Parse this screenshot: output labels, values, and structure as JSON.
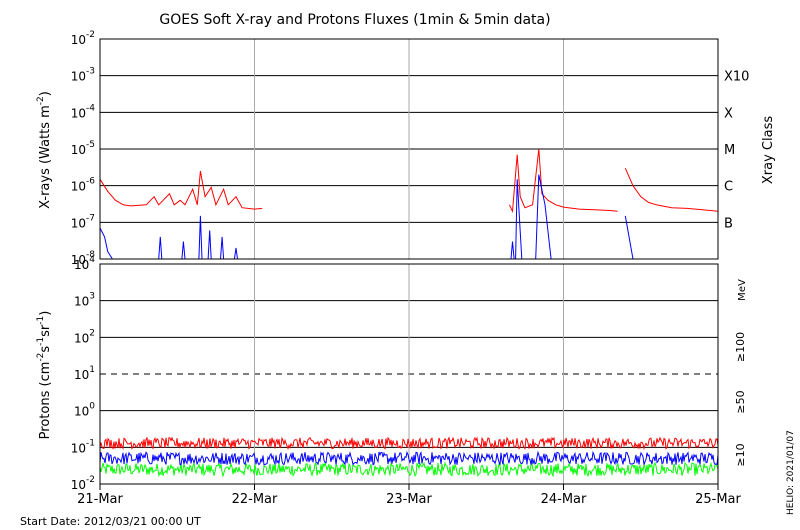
{
  "title": "GOES Soft X-ray and Protons Fluxes   (1min & 5min data)",
  "start_date": "Start Date: 2012/03/21 00:00 UT",
  "credit": "HELIO: 2021/01/07",
  "colors": {
    "xray_long": "#ff0000",
    "xray_short": "#0000ff",
    "p10": "#ff0000",
    "p50": "#0000ff",
    "p100": "#00ff00",
    "grid": "#000000",
    "day_line": "#aaaaaa"
  },
  "chart_data": [
    {
      "type": "line",
      "panel": "xray",
      "title": "GOES Soft X-ray and Protons Fluxes   (1min & 5min data)",
      "ylabel": "X-rays (Watts m-2)",
      "ylabel_main": "X-rays (Watts m",
      "ylabel_sup": "-2",
      "ylabel_close": ")",
      "yscale": "log",
      "ylim": [
        1e-08,
        0.01
      ],
      "yticks": [
        {
          "base": "10",
          "exp": "-8",
          "value": 1e-08
        },
        {
          "base": "10",
          "exp": "-7",
          "value": 1e-07
        },
        {
          "base": "10",
          "exp": "-6",
          "value": 1e-06
        },
        {
          "base": "10",
          "exp": "-5",
          "value": 1e-05
        },
        {
          "base": "10",
          "exp": "-4",
          "value": 0.0001
        },
        {
          "base": "10",
          "exp": "-3",
          "value": 0.001
        },
        {
          "base": "10",
          "exp": "-2",
          "value": 0.01
        }
      ],
      "right_axis_label": "Xray Class",
      "right_ticks": [
        {
          "label": "B",
          "value": 1e-07
        },
        {
          "label": "C",
          "value": 1e-06
        },
        {
          "label": "M",
          "value": 1e-05
        },
        {
          "label": "X",
          "value": 0.0001
        },
        {
          "label": "X10",
          "value": 0.001
        }
      ],
      "xlim": [
        "2012-03-21",
        "2012-03-25"
      ],
      "series": [
        {
          "key": "long",
          "color": "#ff0000",
          "points": [
            [
              0.0,
              1.5e-06
            ],
            [
              0.05,
              7e-07
            ],
            [
              0.1,
              4e-07
            ],
            [
              0.15,
              3e-07
            ],
            [
              0.2,
              2.8e-07
            ],
            [
              0.3,
              3e-07
            ],
            [
              0.35,
              5e-07
            ],
            [
              0.38,
              3e-07
            ],
            [
              0.45,
              6e-07
            ],
            [
              0.48,
              3e-07
            ],
            [
              0.52,
              4e-07
            ],
            [
              0.55,
              3e-07
            ],
            [
              0.6,
              8e-07
            ],
            [
              0.63,
              3e-07
            ],
            [
              0.65,
              2.5e-06
            ],
            [
              0.68,
              5e-07
            ],
            [
              0.72,
              9e-07
            ],
            [
              0.75,
              3e-07
            ],
            [
              0.8,
              8e-07
            ],
            [
              0.83,
              3e-07
            ],
            [
              0.88,
              5e-07
            ],
            [
              0.92,
              2.5e-07
            ],
            [
              1.0,
              2.3e-07
            ],
            [
              1.05,
              2.4e-07
            ],
            [
              null,
              null
            ],
            [
              2.65,
              3e-07
            ],
            [
              2.67,
              2e-07
            ],
            [
              2.7,
              7e-06
            ],
            [
              2.72,
              5e-07
            ],
            [
              2.75,
              2.5e-07
            ],
            [
              2.8,
              3e-07
            ],
            [
              2.84,
              1e-05
            ],
            [
              2.86,
              6e-07
            ],
            [
              2.9,
              4e-07
            ],
            [
              2.95,
              3e-07
            ],
            [
              3.0,
              2.6e-07
            ],
            [
              3.1,
              2.3e-07
            ],
            [
              3.2,
              2.2e-07
            ],
            [
              3.3,
              2.1e-07
            ],
            [
              3.35,
              2e-07
            ],
            [
              null,
              null
            ],
            [
              3.4,
              3e-06
            ],
            [
              3.45,
              1e-06
            ],
            [
              3.5,
              5e-07
            ],
            [
              3.55,
              3.5e-07
            ],
            [
              3.6,
              3e-07
            ],
            [
              3.7,
              2.5e-07
            ],
            [
              3.8,
              2.4e-07
            ],
            [
              3.9,
              2.2e-07
            ],
            [
              4.0,
              2e-07
            ]
          ]
        },
        {
          "key": "short",
          "color": "#0000ff",
          "points": [
            [
              0.0,
              7e-08
            ],
            [
              0.03,
              4e-08
            ],
            [
              0.05,
              1.6e-08
            ],
            [
              0.08,
              1e-08
            ],
            [
              null,
              null
            ],
            [
              0.38,
              1e-08
            ],
            [
              0.39,
              4e-08
            ],
            [
              0.4,
              1e-08
            ],
            [
              null,
              null
            ],
            [
              0.53,
              1e-08
            ],
            [
              0.54,
              3e-08
            ],
            [
              0.55,
              1e-08
            ],
            [
              null,
              null
            ],
            [
              0.64,
              1e-08
            ],
            [
              0.65,
              1.5e-07
            ],
            [
              0.66,
              1e-08
            ],
            [
              null,
              null
            ],
            [
              0.7,
              1e-08
            ],
            [
              0.71,
              6e-08
            ],
            [
              0.72,
              1e-08
            ],
            [
              null,
              null
            ],
            [
              0.78,
              1e-08
            ],
            [
              0.79,
              4e-08
            ],
            [
              0.8,
              1e-08
            ],
            [
              null,
              null
            ],
            [
              0.87,
              1e-08
            ],
            [
              0.88,
              2e-08
            ],
            [
              0.89,
              1e-08
            ],
            [
              null,
              null
            ],
            [
              2.66,
              1e-08
            ],
            [
              2.67,
              3e-08
            ],
            [
              2.68,
              1e-08
            ],
            [
              null,
              null
            ],
            [
              2.69,
              1e-08
            ],
            [
              2.7,
              1.5e-06
            ],
            [
              2.73,
              1e-08
            ],
            [
              null,
              null
            ],
            [
              2.82,
              1e-08
            ],
            [
              2.84,
              2e-06
            ],
            [
              2.88,
              3e-07
            ],
            [
              2.92,
              1e-08
            ],
            [
              null,
              null
            ],
            [
              3.4,
              1.5e-07
            ],
            [
              3.45,
              1e-08
            ]
          ]
        }
      ]
    },
    {
      "type": "line",
      "panel": "protons",
      "ylabel": "Protons (cm-2s-1sr-1)",
      "ylabel_parts": [
        "Protons (cm",
        "-2",
        "s",
        "-1",
        "sr",
        "-1",
        ")"
      ],
      "yscale": "log",
      "ylim": [
        0.01,
        10000
      ],
      "yticks": [
        {
          "base": "10",
          "exp": "-2",
          "value": 0.01
        },
        {
          "base": "10",
          "exp": "-1",
          "value": 0.1
        },
        {
          "base": "10",
          "exp": "0",
          "value": 1
        },
        {
          "base": "10",
          "exp": "1",
          "value": 10
        },
        {
          "base": "10",
          "exp": "2",
          "value": 100
        },
        {
          "base": "10",
          "exp": "3",
          "value": 1000
        },
        {
          "base": "10",
          "exp": "4",
          "value": 10000
        }
      ],
      "threshold": 10,
      "unit_label": "MeV",
      "series": [
        {
          "name": "≥100",
          "color": "#00ff00",
          "level": 0.025,
          "spread": 0.35
        },
        {
          "name": "≥50",
          "color": "#0000ff",
          "level": 0.05,
          "spread": 0.35
        },
        {
          "name": "≥10",
          "color": "#ff0000",
          "level": 0.13,
          "spread": 0.3
        }
      ],
      "xticks": [
        "21-Mar",
        "22-Mar",
        "23-Mar",
        "24-Mar",
        "25-Mar"
      ]
    }
  ]
}
